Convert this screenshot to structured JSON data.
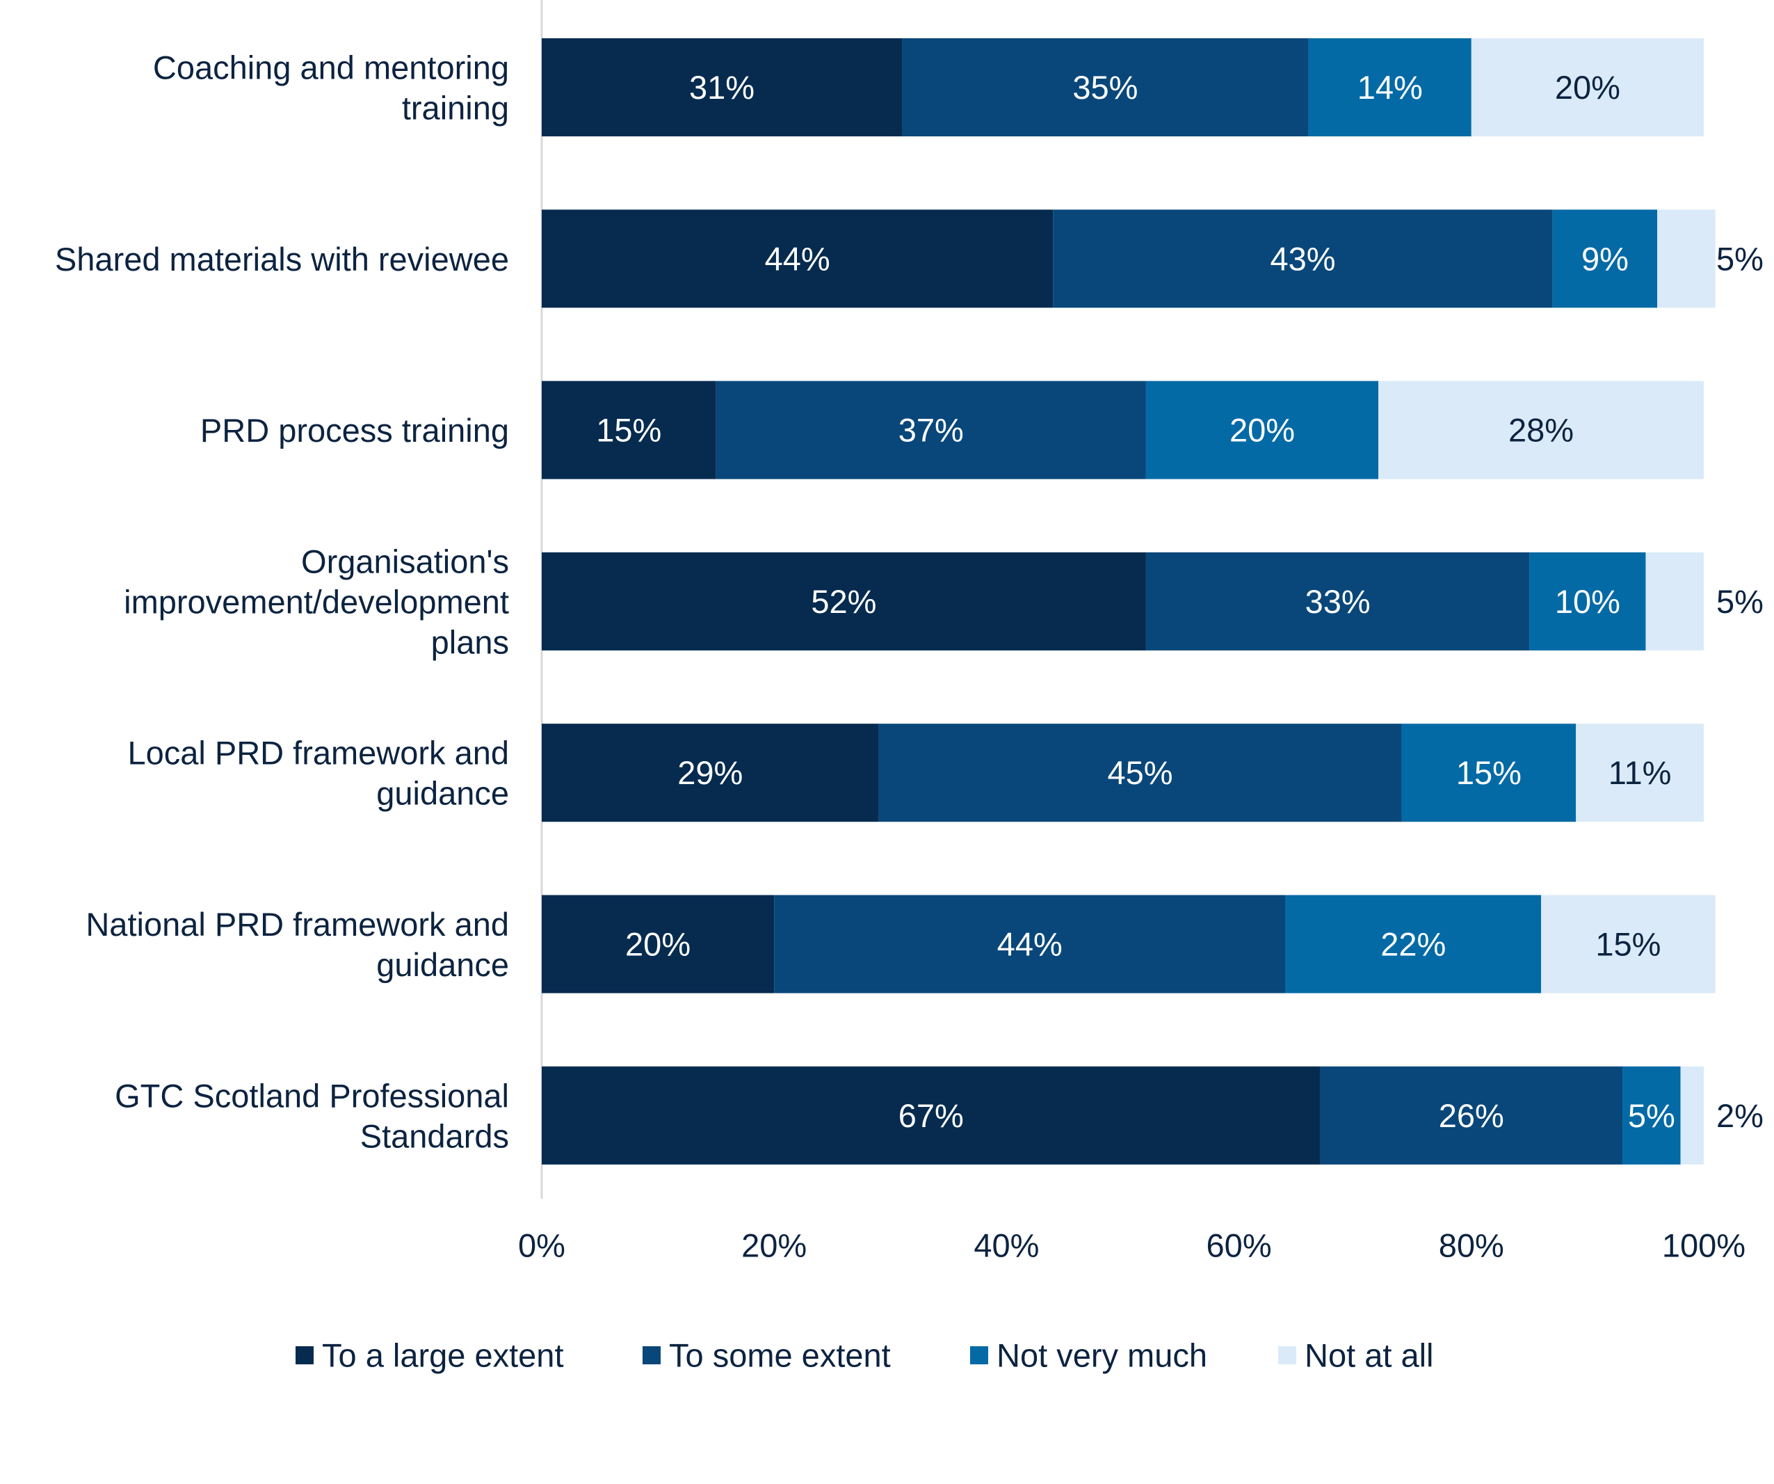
{
  "chart_data": {
    "type": "bar",
    "orientation": "horizontal",
    "stacked": true,
    "categories": [
      [
        "Coaching and mentoring",
        "training"
      ],
      [
        "Shared materials with reviewee"
      ],
      [
        "PRD process training"
      ],
      [
        "Organisation's",
        "improvement/development",
        "plans"
      ],
      [
        "Local PRD framework and",
        "guidance"
      ],
      [
        "National PRD framework and",
        "guidance"
      ],
      [
        "GTC Scotland Professional",
        "Standards"
      ]
    ],
    "series": [
      {
        "name": "To a large extent",
        "color": "#062b4f",
        "label_color": "#ffffff",
        "values": [
          31,
          44,
          15,
          52,
          29,
          20,
          67
        ]
      },
      {
        "name": "To some extent",
        "color": "#09477a",
        "label_color": "#ffffff",
        "values": [
          35,
          43,
          37,
          33,
          45,
          44,
          26
        ]
      },
      {
        "name": "Not very much",
        "color": "#046aa6",
        "label_color": "#ffffff",
        "values": [
          14,
          9,
          20,
          10,
          15,
          22,
          5
        ]
      },
      {
        "name": "Not at all",
        "color": "#daeaf8",
        "label_color": "#0c2340",
        "values": [
          20,
          5,
          28,
          5,
          11,
          15,
          2
        ]
      }
    ],
    "data_labels": [
      [
        "31%",
        "35%",
        "14%",
        "20%"
      ],
      [
        "44%",
        "43%",
        "9%",
        "5%"
      ],
      [
        "15%",
        "37%",
        "20%",
        "28%"
      ],
      [
        "52%",
        "33%",
        "10%",
        "5%"
      ],
      [
        "29%",
        "45%",
        "15%",
        "11%"
      ],
      [
        "20%",
        "44%",
        "22%",
        "15%"
      ],
      [
        "67%",
        "26%",
        "5%",
        "2%"
      ]
    ],
    "outside_labels": [
      false,
      true,
      false,
      true,
      false,
      false,
      true
    ],
    "xlim": [
      0,
      100
    ],
    "x_ticks": [
      0,
      20,
      40,
      60,
      80,
      100
    ],
    "x_tick_labels": [
      "0%",
      "20%",
      "40%",
      "60%",
      "80%",
      "100%"
    ],
    "title": "",
    "xlabel": "",
    "ylabel": "",
    "grid": false,
    "legend_position": "bottom",
    "axis_color": "#d9d9d9"
  }
}
